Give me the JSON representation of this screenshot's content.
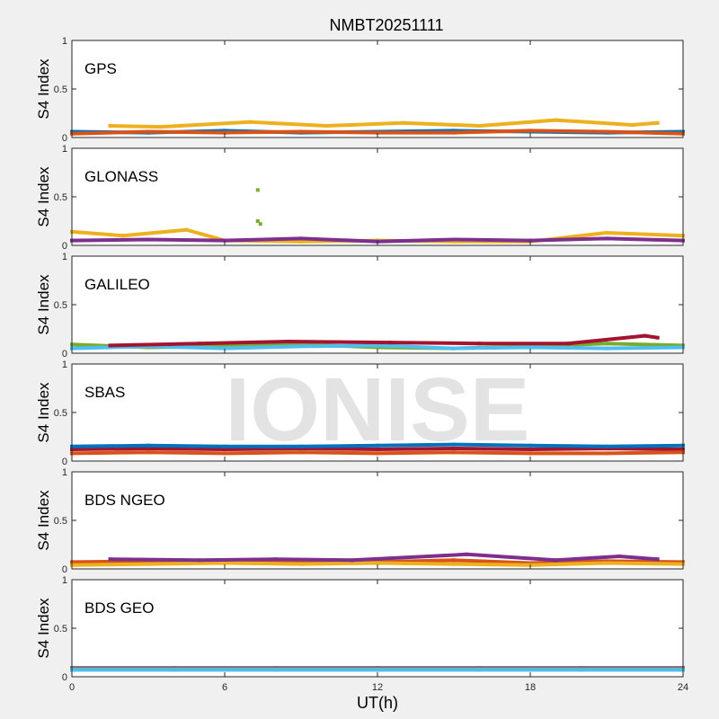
{
  "chart_data": {
    "type": "scatter",
    "title": "NMBT20251111",
    "watermark": "IONISE",
    "xlabel": "UT(h)",
    "xlim": [
      0,
      24
    ],
    "xticks": [
      0,
      6,
      12,
      18,
      24
    ],
    "ylabel": "S4 Index",
    "ylim": [
      0,
      1
    ],
    "yticks": [
      0,
      0.5,
      1
    ],
    "grid": false,
    "palette": [
      "#0072BD",
      "#D95319",
      "#EDB120",
      "#7E2F8E",
      "#77AC30",
      "#4DBEEE",
      "#A2142F"
    ],
    "panels": [
      {
        "label": "GPS",
        "series": [
          {
            "x": [
              0,
              3,
              6,
              9,
              12,
              15,
              18,
              21,
              24
            ],
            "y": [
              0.06,
              0.05,
              0.07,
              0.05,
              0.06,
              0.07,
              0.06,
              0.05,
              0.06
            ]
          },
          {
            "x": [
              0,
              3,
              6,
              9,
              12,
              15,
              18,
              21,
              24
            ],
            "y": [
              0.04,
              0.06,
              0.05,
              0.06,
              0.05,
              0.05,
              0.07,
              0.06,
              0.04
            ]
          },
          {
            "x": [
              1.5,
              3.5,
              7,
              10,
              13,
              16,
              19,
              22,
              23
            ],
            "y": [
              0.12,
              0.11,
              0.16,
              0.12,
              0.15,
              0.12,
              0.18,
              0.13,
              0.15
            ]
          }
        ]
      },
      {
        "label": "GLONASS",
        "series": [
          {
            "x": [
              0,
              2,
              4.5,
              6,
              9,
              12,
              15,
              18,
              21,
              24
            ],
            "y": [
              0.14,
              0.1,
              0.16,
              0.05,
              0.04,
              0.05,
              0.04,
              0.04,
              0.13,
              0.1
            ]
          },
          {
            "x": [
              0,
              3,
              6,
              9,
              12,
              15,
              18,
              21,
              24
            ],
            "y": [
              0.05,
              0.06,
              0.05,
              0.07,
              0.04,
              0.06,
              0.05,
              0.07,
              0.05
            ]
          },
          {
            "x": [
              7.3,
              7.3,
              7.4
            ],
            "y": [
              0.57,
              0.25,
              0.22
            ]
          }
        ]
      },
      {
        "label": "GALILEO",
        "series": [
          {
            "x": [
              0,
              3,
              6,
              9,
              12,
              15,
              18,
              21,
              24
            ],
            "y": [
              0.09,
              0.06,
              0.07,
              0.09,
              0.06,
              0.05,
              0.07,
              0.1,
              0.08
            ]
          },
          {
            "x": [
              0,
              3,
              6,
              9,
              12,
              15,
              18,
              21,
              24
            ],
            "y": [
              0.05,
              0.07,
              0.05,
              0.07,
              0.08,
              0.05,
              0.06,
              0.05,
              0.06
            ]
          },
          {
            "x": [
              1.5,
              5,
              8.5,
              12.5,
              16,
              19.5,
              22.5,
              23
            ],
            "y": [
              0.08,
              0.1,
              0.12,
              0.11,
              0.1,
              0.1,
              0.18,
              0.16
            ]
          }
        ]
      },
      {
        "label": "SBAS",
        "series": [
          {
            "x": [
              0,
              3,
              6,
              9,
              12,
              15,
              18,
              21,
              24
            ],
            "y": [
              0.12,
              0.13,
              0.12,
              0.13,
              0.12,
              0.13,
              0.12,
              0.13,
              0.12
            ]
          },
          {
            "x": [
              0,
              3,
              6,
              9,
              12,
              15,
              18,
              21,
              24
            ],
            "y": [
              0.15,
              0.16,
              0.15,
              0.15,
              0.16,
              0.17,
              0.16,
              0.15,
              0.16
            ]
          },
          {
            "x": [
              0,
              3,
              6,
              9,
              12,
              15,
              18,
              21,
              24
            ],
            "y": [
              0.08,
              0.09,
              0.08,
              0.09,
              0.08,
              0.09,
              0.08,
              0.08,
              0.09
            ]
          }
        ]
      },
      {
        "label": "BDS NGEO",
        "series": [
          {
            "x": [
              0,
              3,
              6,
              9,
              12,
              15,
              18,
              21,
              24
            ],
            "y": [
              0.07,
              0.08,
              0.06,
              0.08,
              0.07,
              0.09,
              0.06,
              0.08,
              0.07
            ]
          },
          {
            "x": [
              0,
              3,
              6,
              9,
              12,
              15,
              18,
              21,
              24
            ],
            "y": [
              0.04,
              0.05,
              0.06,
              0.05,
              0.06,
              0.05,
              0.04,
              0.06,
              0.05
            ]
          },
          {
            "x": [
              1.5,
              5,
              8,
              11,
              15.5,
              19,
              21.5,
              23
            ],
            "y": [
              0.1,
              0.09,
              0.1,
              0.09,
              0.15,
              0.09,
              0.13,
              0.1
            ]
          }
        ]
      },
      {
        "label": "BDS GEO",
        "series": [
          {
            "x": [
              0,
              4,
              8,
              12,
              16,
              20,
              24
            ],
            "y": [
              0.09,
              0.09,
              0.09,
              0.09,
              0.09,
              0.09,
              0.09
            ]
          },
          {
            "x": [
              0,
              4,
              8,
              12,
              16,
              20,
              24
            ],
            "y": [
              0.08,
              0.08,
              0.08,
              0.08,
              0.08,
              0.08,
              0.08
            ]
          },
          {
            "x": [
              0,
              4,
              8,
              12,
              16,
              20,
              24
            ],
            "y": [
              0.07,
              0.07,
              0.07,
              0.07,
              0.07,
              0.07,
              0.07
            ]
          }
        ]
      }
    ]
  }
}
